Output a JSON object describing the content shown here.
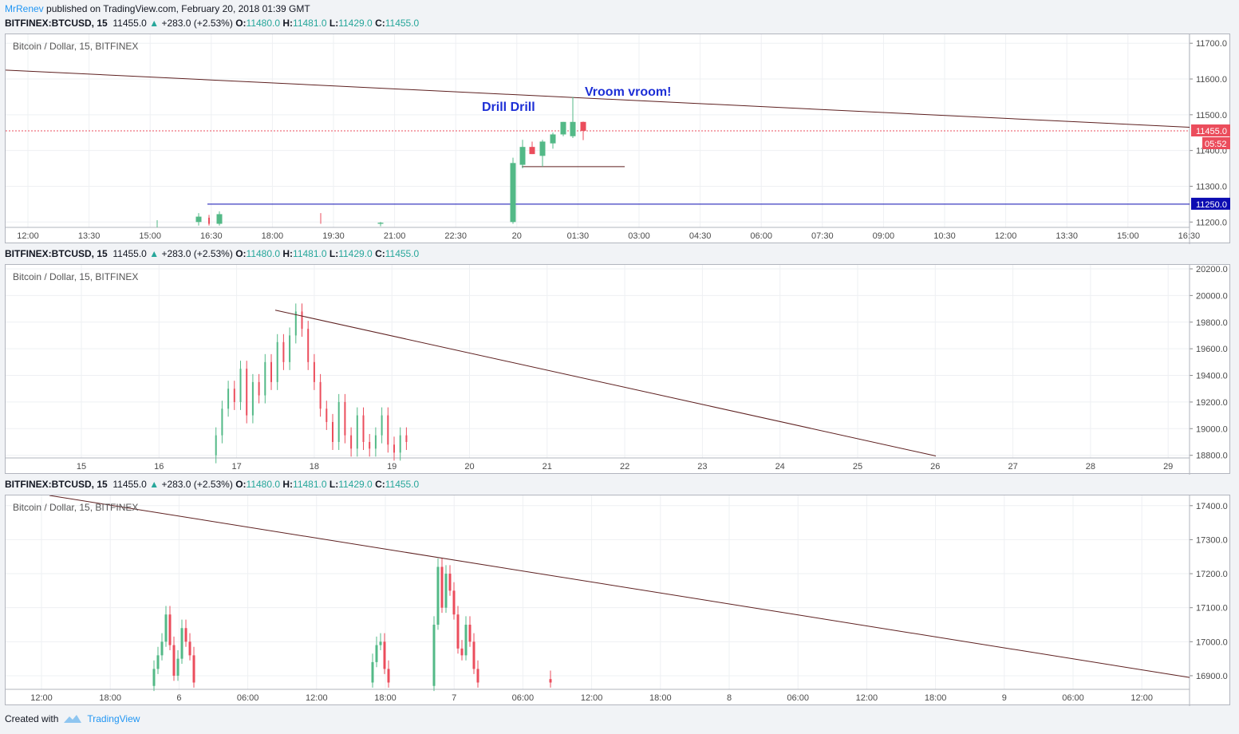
{
  "header": {
    "author": "MrRenev",
    "text": " published on TradingView.com, February 20, 2018 01:39 GMT"
  },
  "symbol_line": {
    "symbol": "BITFINEX:BTCUSD, 15",
    "price": "11455.0",
    "change": "+283.0 (+2.53%)",
    "o": "11480.0",
    "h": "11481.0",
    "l": "11429.0",
    "c": "11455.0",
    "o_label": "O:",
    "h_label": "H:",
    "l_label": "L:",
    "c_label": "C:"
  },
  "legend": "Bitcoin / Dollar, 15, BITFINEX",
  "colors": {
    "up": "#53b987",
    "down": "#eb4d5c",
    "trendline": "#5d1f1f",
    "hline": "#0c0cb2",
    "annotation": "#1d2fd6"
  },
  "footer": {
    "created": "Created with",
    "brand": "TradingView"
  },
  "chart_data": [
    {
      "type": "candlestick",
      "ylim": [
        11185,
        11725
      ],
      "yticks": [
        "11700.0",
        "11600.0",
        "11500.0",
        "11400.0",
        "11300.0",
        "11200.0"
      ],
      "xticks": [
        "12:00",
        "13:30",
        "15:00",
        "16:30",
        "18:00",
        "19:30",
        "21:00",
        "22:30",
        "20",
        "01:30",
        "03:00",
        "04:30",
        "06:00",
        "07:30",
        "09:00",
        "10:30",
        "12:00",
        "13:30",
        "15:00",
        "16:30"
      ],
      "price_label": "11455.0",
      "countdown": "05:52",
      "hline_label": "11250.0",
      "hline_value": 11250,
      "annotations": [
        "Drill Drill",
        "Vroom vroom!"
      ],
      "candles": [
        {
          "o": 11190,
          "h": 11205,
          "l": 11185,
          "c": 11200
        },
        {
          "o": 11200,
          "h": 11225,
          "l": 11190,
          "c": 11215
        },
        {
          "o": 11212,
          "h": 11220,
          "l": 11190,
          "c": 11195
        },
        {
          "o": 11195,
          "h": 11230,
          "l": 11190,
          "c": 11222
        },
        {
          "o": 11220,
          "h": 11225,
          "l": 11195,
          "c": 11198
        },
        {
          "o": 11195,
          "h": 11200,
          "l": 11188,
          "c": 11198
        },
        {
          "o": 11200,
          "h": 11380,
          "l": 11195,
          "c": 11365
        },
        {
          "o": 11360,
          "h": 11430,
          "l": 11350,
          "c": 11410
        },
        {
          "o": 11410,
          "h": 11425,
          "l": 11390,
          "c": 11390
        },
        {
          "o": 11385,
          "h": 11430,
          "l": 11355,
          "c": 11425
        },
        {
          "o": 11420,
          "h": 11450,
          "l": 11405,
          "c": 11445
        },
        {
          "o": 11445,
          "h": 11480,
          "l": 11440,
          "c": 11480
        },
        {
          "o": 11440,
          "h": 11550,
          "l": 11435,
          "c": 11480
        },
        {
          "o": 11480,
          "h": 11481,
          "l": 11429,
          "c": 11455
        }
      ]
    },
    {
      "type": "candlestick",
      "ylim": [
        18780,
        20230
      ],
      "yticks": [
        "20200.0",
        "20000.0",
        "19800.0",
        "19600.0",
        "19400.0",
        "19200.0",
        "19000.0",
        "18800.0"
      ],
      "xticks": [
        "15",
        "16",
        "17",
        "18",
        "19",
        "20",
        "21",
        "22",
        "23",
        "24",
        "25",
        "26",
        "27",
        "28",
        "29"
      ],
      "path": [
        18800,
        18950,
        19150,
        19300,
        19200,
        19450,
        19100,
        19350,
        19250,
        19500,
        19350,
        19650,
        19500,
        19700,
        19880,
        19750,
        19500,
        19350,
        19150,
        19050,
        18900,
        19200,
        18950,
        18850,
        19100,
        18900,
        18850,
        18950,
        19100,
        18880,
        18820,
        18950,
        18900
      ]
    },
    {
      "type": "candlestick",
      "ylim": [
        16860,
        17430
      ],
      "yticks": [
        "17400.0",
        "17300.0",
        "17200.0",
        "17100.0",
        "17000.0",
        "16900.0"
      ],
      "xticks": [
        "12:00",
        "18:00",
        "6",
        "06:00",
        "12:00",
        "18:00",
        "7",
        "06:00",
        "12:00",
        "18:00",
        "8",
        "06:00",
        "12:00",
        "18:00",
        "9",
        "06:00",
        "12:00"
      ],
      "groups": [
        [
          16870,
          16920,
          16960,
          17000,
          17080,
          16990,
          16900,
          16950,
          17040,
          17000,
          16960,
          16880
        ],
        [
          16880,
          16940,
          16990,
          17000,
          16920,
          16880
        ],
        [
          16870,
          17050,
          17220,
          17100,
          17200,
          17150,
          17080,
          16980,
          16960,
          17050,
          17000,
          16920,
          16880
        ],
        [
          16890,
          16880
        ]
      ]
    }
  ]
}
